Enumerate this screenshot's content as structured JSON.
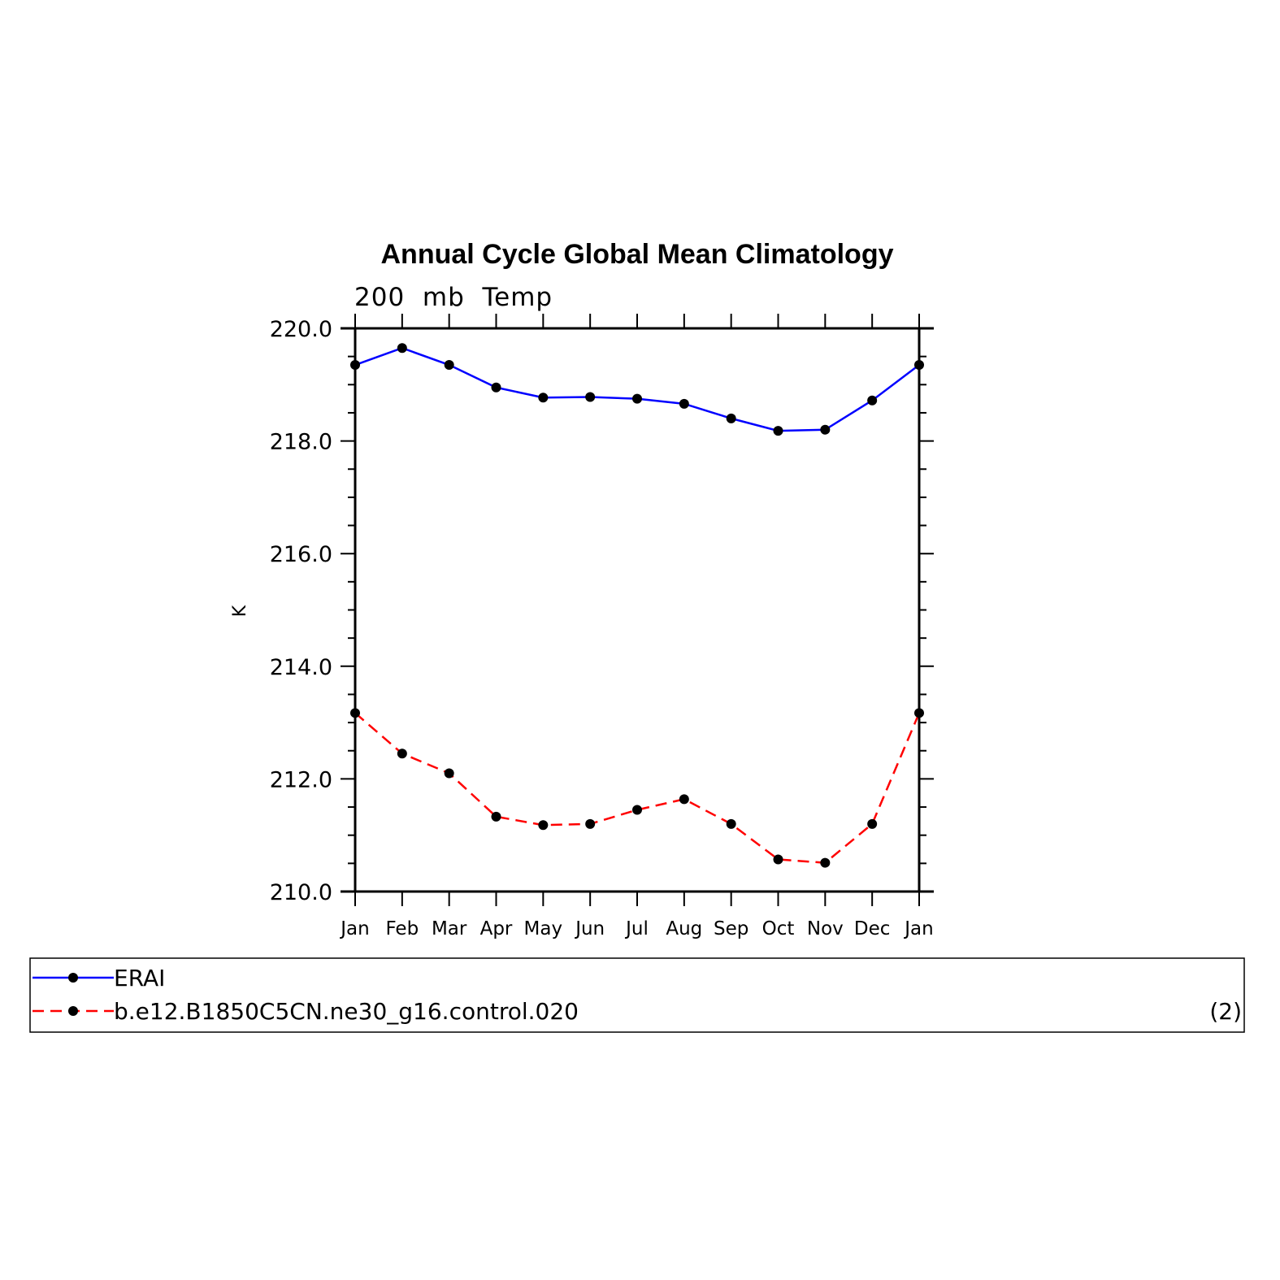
{
  "chart_data": {
    "type": "line",
    "title": "Annual Cycle Global Mean Climatology",
    "subtitle": "200  mb  Temp",
    "ylabel": "K",
    "xlabel": "",
    "categories": [
      "Jan",
      "Feb",
      "Mar",
      "Apr",
      "May",
      "Jun",
      "Jul",
      "Aug",
      "Sep",
      "Oct",
      "Nov",
      "Dec",
      "Jan"
    ],
    "ylim": [
      210.0,
      220.0
    ],
    "yticks": [
      "210.0",
      "212.0",
      "214.0",
      "216.0",
      "218.0",
      "220.0"
    ],
    "yminor_step": 0.5,
    "grid": false,
    "series": [
      {
        "name": "ERAI",
        "color": "#0000ff",
        "dash": "solid",
        "marker": "circle",
        "values": [
          219.35,
          219.65,
          219.35,
          218.95,
          218.77,
          218.78,
          218.75,
          218.66,
          218.4,
          218.18,
          218.2,
          218.72,
          219.35
        ]
      },
      {
        "name": "b.e12.B1850C5CN.ne30_g16.control.020",
        "color": "#ff0000",
        "dash": "dashed",
        "marker": "circle",
        "values": [
          213.17,
          212.45,
          212.1,
          211.33,
          211.18,
          211.2,
          211.45,
          211.64,
          211.2,
          210.57,
          210.51,
          211.2,
          213.17
        ]
      }
    ],
    "legend": {
      "placement": "bottom",
      "note": "(2)"
    }
  }
}
